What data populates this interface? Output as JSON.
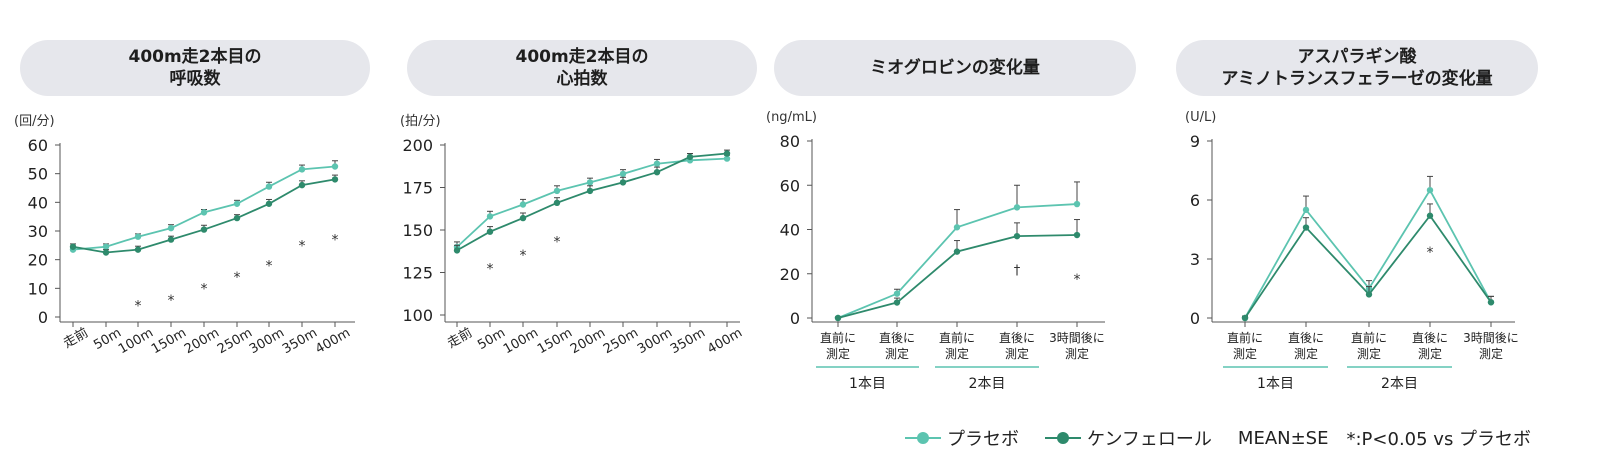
{
  "colors": {
    "placebo": "#5cc4b0",
    "kenf": "#2e8a6c",
    "axis": "#555555",
    "pill": "#e6e7ec",
    "text": "#222222"
  },
  "legend": {
    "placebo": "プラセボ",
    "kenf": "ケンフェロール",
    "mean_se": "MEAN±SE",
    "significance": "*:P<0.05 vs プラセボ"
  },
  "chart_data": [
    {
      "type": "line",
      "title_lines": [
        "400m走2本目の",
        "呼吸数"
      ],
      "unit": "(回/分)",
      "ylim": [
        0,
        60
      ],
      "yticks": [
        0,
        10,
        20,
        30,
        40,
        50,
        60
      ],
      "categories": [
        "走前",
        "50m",
        "100m",
        "150m",
        "200m",
        "250m",
        "300m",
        "350m",
        "400m"
      ],
      "series": [
        {
          "name": "プラセボ",
          "values": [
            23.5,
            24.5,
            28,
            31,
            36.5,
            39.5,
            45.5,
            51.5,
            52.5
          ],
          "errors": [
            1,
            1,
            1,
            1.2,
            1,
            1.2,
            1.5,
            1.5,
            2
          ]
        },
        {
          "name": "ケンフェロール",
          "values": [
            24.5,
            22.5,
            23.5,
            27,
            30.5,
            34.5,
            39.5,
            46,
            48
          ],
          "errors": [
            1,
            1,
            1.2,
            1.2,
            1.5,
            1.2,
            1.5,
            1.5,
            1.5
          ]
        }
      ],
      "annotations": [
        {
          "index": 2,
          "text": "*",
          "y": 5
        },
        {
          "index": 3,
          "text": "*",
          "y": 7
        },
        {
          "index": 4,
          "text": "*",
          "y": 11
        },
        {
          "index": 5,
          "text": "*",
          "y": 15
        },
        {
          "index": 6,
          "text": "*",
          "y": 19
        },
        {
          "index": 7,
          "text": "*",
          "y": 26
        },
        {
          "index": 8,
          "text": "*",
          "y": 28
        }
      ]
    },
    {
      "type": "line",
      "title_lines": [
        "400m走2本目の",
        "心拍数"
      ],
      "unit": "(拍/分)",
      "ylim": [
        100,
        200
      ],
      "yticks": [
        100,
        125,
        150,
        175,
        200
      ],
      "categories": [
        "走前",
        "50m",
        "100m",
        "150m",
        "200m",
        "250m",
        "300m",
        "350m",
        "400m"
      ],
      "series": [
        {
          "name": "プラセボ",
          "values": [
            140,
            158,
            165,
            173,
            178,
            183,
            189,
            191,
            192
          ],
          "errors": [
            3,
            3,
            3,
            3,
            2.5,
            2.5,
            2.5,
            2,
            2
          ]
        },
        {
          "name": "ケンフェロール",
          "values": [
            138,
            149,
            157,
            166,
            173,
            178,
            184,
            193,
            195
          ],
          "errors": [
            3,
            3,
            3,
            3,
            3,
            3,
            3,
            2,
            2
          ]
        }
      ],
      "annotations": [
        {
          "index": 1,
          "text": "*",
          "y": 129
        },
        {
          "index": 2,
          "text": "*",
          "y": 137
        },
        {
          "index": 3,
          "text": "*",
          "y": 145
        }
      ]
    },
    {
      "type": "line",
      "title_lines": [
        "ミオグロビンの変化量"
      ],
      "unit": "(ng/mL)",
      "ylim": [
        0,
        80
      ],
      "yticks": [
        0,
        20,
        40,
        60,
        80
      ],
      "categories": [
        [
          "直前に",
          "測定"
        ],
        [
          "直後に",
          "測定"
        ],
        [
          "直前に",
          "測定"
        ],
        [
          "直後に",
          "測定"
        ],
        [
          "3時間後に",
          "測定"
        ]
      ],
      "groups": [
        {
          "label": "1本目",
          "span": [
            0,
            1
          ]
        },
        {
          "label": "2本目",
          "span": [
            2,
            3
          ]
        }
      ],
      "series": [
        {
          "name": "プラセボ",
          "values": [
            0,
            11,
            41,
            50,
            51.5
          ],
          "errors": [
            0.5,
            2,
            8,
            10,
            10
          ]
        },
        {
          "name": "ケンフェロール",
          "values": [
            0,
            7,
            30,
            37,
            37.5
          ],
          "errors": [
            0.5,
            2,
            5,
            6,
            7
          ]
        }
      ],
      "annotations": [
        {
          "index": 3,
          "text": "†",
          "y": 22
        },
        {
          "index": 4,
          "text": "*",
          "y": 19
        }
      ]
    },
    {
      "type": "line",
      "title_lines": [
        "アスパラギン酸",
        "アミノトランスフェラーゼの変化量"
      ],
      "unit": "(U/L)",
      "ylim": [
        0,
        9
      ],
      "yticks": [
        0,
        3,
        6,
        9
      ],
      "categories": [
        [
          "直前に",
          "測定"
        ],
        [
          "直後に",
          "測定"
        ],
        [
          "直前に",
          "測定"
        ],
        [
          "直後に",
          "測定"
        ],
        [
          "3時間後に",
          "測定"
        ]
      ],
      "groups": [
        {
          "label": "1本目",
          "span": [
            0,
            1
          ]
        },
        {
          "label": "2本目",
          "span": [
            2,
            3
          ]
        }
      ],
      "series": [
        {
          "name": "プラセボ",
          "values": [
            0,
            5.5,
            1.5,
            6.5,
            0.8
          ],
          "errors": [
            0.1,
            0.7,
            0.4,
            0.7,
            0.3
          ]
        },
        {
          "name": "ケンフェロール",
          "values": [
            0,
            4.6,
            1.2,
            5.2,
            0.8
          ],
          "errors": [
            0.1,
            0.5,
            0.4,
            0.6,
            0.3
          ]
        }
      ],
      "annotations": [
        {
          "index": 3,
          "text": "*",
          "y": 3.5
        }
      ]
    }
  ]
}
